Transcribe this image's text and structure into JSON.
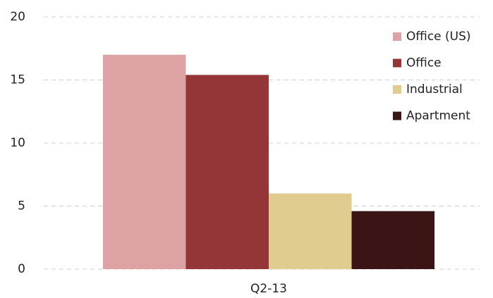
{
  "chart_data": {
    "type": "bar",
    "categories": [
      "Q2-13"
    ],
    "series": [
      {
        "name": "Office (US)",
        "color": "#dca2a4",
        "values": [
          17
        ]
      },
      {
        "name": "Office",
        "color": "#943638",
        "values": [
          15.4
        ]
      },
      {
        "name": "Industrial",
        "color": "#dfcc8e",
        "values": [
          6
        ]
      },
      {
        "name": "Apartment",
        "color": "#3b1516",
        "values": [
          4.6
        ]
      }
    ],
    "ylim": [
      0,
      20
    ],
    "yticks": [
      0,
      5,
      10,
      15,
      20
    ],
    "grid": true,
    "legend": "upper-right"
  }
}
